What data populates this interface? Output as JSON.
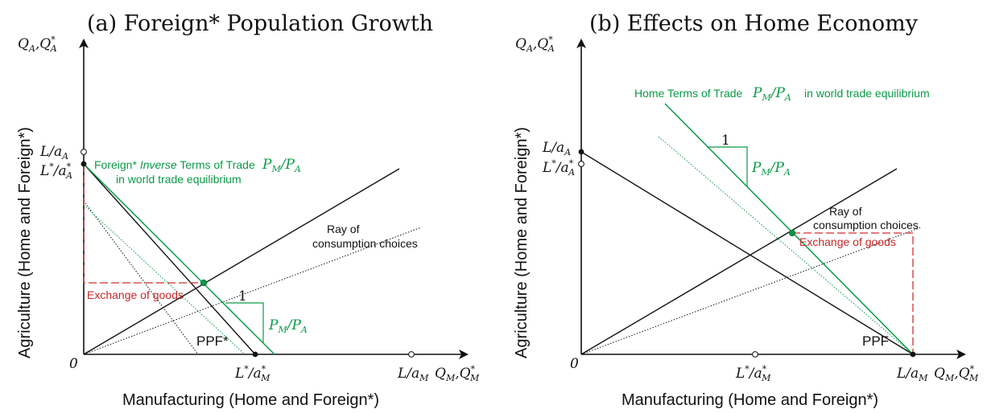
{
  "panel_a": {
    "title": "(a) Foreign* Population Growth",
    "y_axis_var": "Q",
    "y_axis_var_sub": "A",
    "y_axis_var2": "Q",
    "y_axis_var2_sub": "A",
    "y_axis_var2_sup": "*",
    "x_axis_var": "Q",
    "x_axis_var_sub": "M",
    "x_axis_var2": "Q",
    "x_axis_var2_sub": "M",
    "x_axis_var2_sup": "*",
    "origin": "0",
    "y_tick_home": "L/a",
    "y_tick_home_sub": "A",
    "y_tick_foreign_L": "L",
    "y_tick_foreign_a": "/a",
    "y_tick_foreign_sub": "A",
    "x_tick_foreign_L": "L",
    "x_tick_foreign_a": "/a",
    "x_tick_foreign_sub": "M",
    "x_tick_home": "L/a",
    "x_tick_home_sub": "M",
    "tot_label_prefix": "Foreign* ",
    "tot_label_italic": "Inverse",
    "tot_label_suffix": " Terms of Trade",
    "tot_label_line2": "in world trade equilibrium",
    "tot_ratio_P1": "P",
    "tot_ratio_sub1": "M",
    "tot_ratio_P2": "/P",
    "tot_ratio_sub2": "A",
    "ray_label_line1": "Ray of",
    "ray_label_line2": "consumption choices",
    "exchange_label": "Exchange of goods",
    "slope_run": "1",
    "slope_rise_P1": "P",
    "slope_rise_sub1": "M",
    "slope_rise_P2": "/P",
    "slope_rise_sub2": "A",
    "ppf_label": "PPF*",
    "y_axis_title": "Agriculture (Home and Foreign*)",
    "x_axis_title": "Manufacturing (Home and Foreign*)"
  },
  "panel_b": {
    "title": "(b) Effects on Home Economy",
    "y_axis_var": "Q",
    "y_axis_var_sub": "A",
    "y_axis_var2": "Q",
    "y_axis_var2_sub": "A",
    "y_axis_var2_sup": "*",
    "x_axis_var": "Q",
    "x_axis_var_sub": "M",
    "x_axis_var2": "Q",
    "x_axis_var2_sub": "M",
    "x_axis_var2_sup": "*",
    "origin": "0",
    "y_tick_home": "L/a",
    "y_tick_home_sub": "A",
    "y_tick_foreign_L": "L",
    "y_tick_foreign_a": "/a",
    "y_tick_foreign_sub": "A",
    "x_tick_foreign_L": "L",
    "x_tick_foreign_a": "/a",
    "x_tick_foreign_sub": "M",
    "x_tick_home": "L/a",
    "x_tick_home_sub": "M",
    "tot_label": "Home Terms of Trade",
    "tot_label_suffix": "in world trade equilibrium",
    "tot_ratio_P1": "P",
    "tot_ratio_sub1": "M",
    "tot_ratio_P2": "/P",
    "tot_ratio_sub2": "A",
    "ray_label_line1": "Ray of",
    "ray_label_line2": "consumption choices",
    "exchange_label": "Exchange of goods",
    "slope_run": "1",
    "slope_rise_P1": "P",
    "slope_rise_sub1": "M",
    "slope_rise_P2": "/P",
    "slope_rise_sub2": "A",
    "ppf_label": "PPF",
    "y_axis_title": "Agriculture (Home and Foreign*)",
    "x_axis_title": "Manufacturing (Home and Foreign*)"
  },
  "colors": {
    "axis": "#111111",
    "terms_of_trade": "#0a9a47",
    "exchange": "#d32f2f"
  }
}
